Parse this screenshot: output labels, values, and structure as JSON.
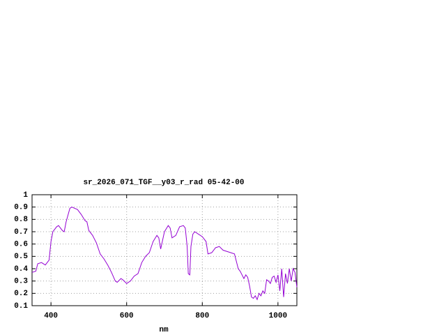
{
  "chart_data": {
    "type": "line",
    "title": "sr_2026_071_TGF__y03_r_rad 05-42-00",
    "x_label": "nm",
    "xlim": [
      350,
      1050
    ],
    "xticks": [
      400,
      600,
      800,
      1000
    ],
    "ylim": [
      0.1,
      1
    ],
    "yticks": [
      0.1,
      0.2,
      0.3,
      0.4,
      0.5,
      0.6,
      0.7,
      0.8,
      0.9,
      1
    ],
    "grid": true,
    "series": [
      {
        "color": "#9400d3",
        "x": [
          350,
          360,
          365,
          375,
          385,
          395,
          400,
          405,
          415,
          420,
          430,
          435,
          440,
          450,
          455,
          470,
          480,
          490,
          495,
          500,
          510,
          520,
          530,
          540,
          550,
          560,
          570,
          575,
          585,
          590,
          600,
          610,
          620,
          630,
          640,
          650,
          660,
          670,
          680,
          685,
          690,
          700,
          710,
          715,
          720,
          730,
          740,
          750,
          755,
          760,
          763,
          767,
          770,
          775,
          780,
          790,
          800,
          810,
          815,
          825,
          835,
          845,
          855,
          865,
          875,
          885,
          890,
          895,
          900,
          905,
          910,
          915,
          920,
          925,
          930,
          935,
          940,
          945,
          950,
          955,
          960,
          965,
          970,
          975,
          980,
          985,
          990,
          995,
          1000,
          1005,
          1010,
          1015,
          1020,
          1025,
          1030,
          1035,
          1040,
          1045,
          1050
        ],
        "values": [
          0.37,
          0.38,
          0.44,
          0.45,
          0.43,
          0.47,
          0.62,
          0.7,
          0.74,
          0.75,
          0.71,
          0.7,
          0.78,
          0.89,
          0.9,
          0.88,
          0.84,
          0.79,
          0.78,
          0.71,
          0.67,
          0.61,
          0.52,
          0.48,
          0.43,
          0.37,
          0.3,
          0.29,
          0.32,
          0.31,
          0.28,
          0.3,
          0.34,
          0.36,
          0.45,
          0.5,
          0.53,
          0.62,
          0.67,
          0.65,
          0.56,
          0.7,
          0.75,
          0.73,
          0.65,
          0.67,
          0.74,
          0.75,
          0.73,
          0.58,
          0.36,
          0.35,
          0.58,
          0.68,
          0.7,
          0.68,
          0.66,
          0.62,
          0.52,
          0.53,
          0.57,
          0.58,
          0.55,
          0.54,
          0.53,
          0.52,
          0.46,
          0.4,
          0.38,
          0.35,
          0.32,
          0.35,
          0.33,
          0.26,
          0.17,
          0.16,
          0.18,
          0.15,
          0.2,
          0.18,
          0.22,
          0.2,
          0.31,
          0.3,
          0.28,
          0.33,
          0.34,
          0.29,
          0.35,
          0.22,
          0.4,
          0.17,
          0.36,
          0.28,
          0.4,
          0.3,
          0.4,
          0.37,
          0.25
        ]
      }
    ]
  }
}
